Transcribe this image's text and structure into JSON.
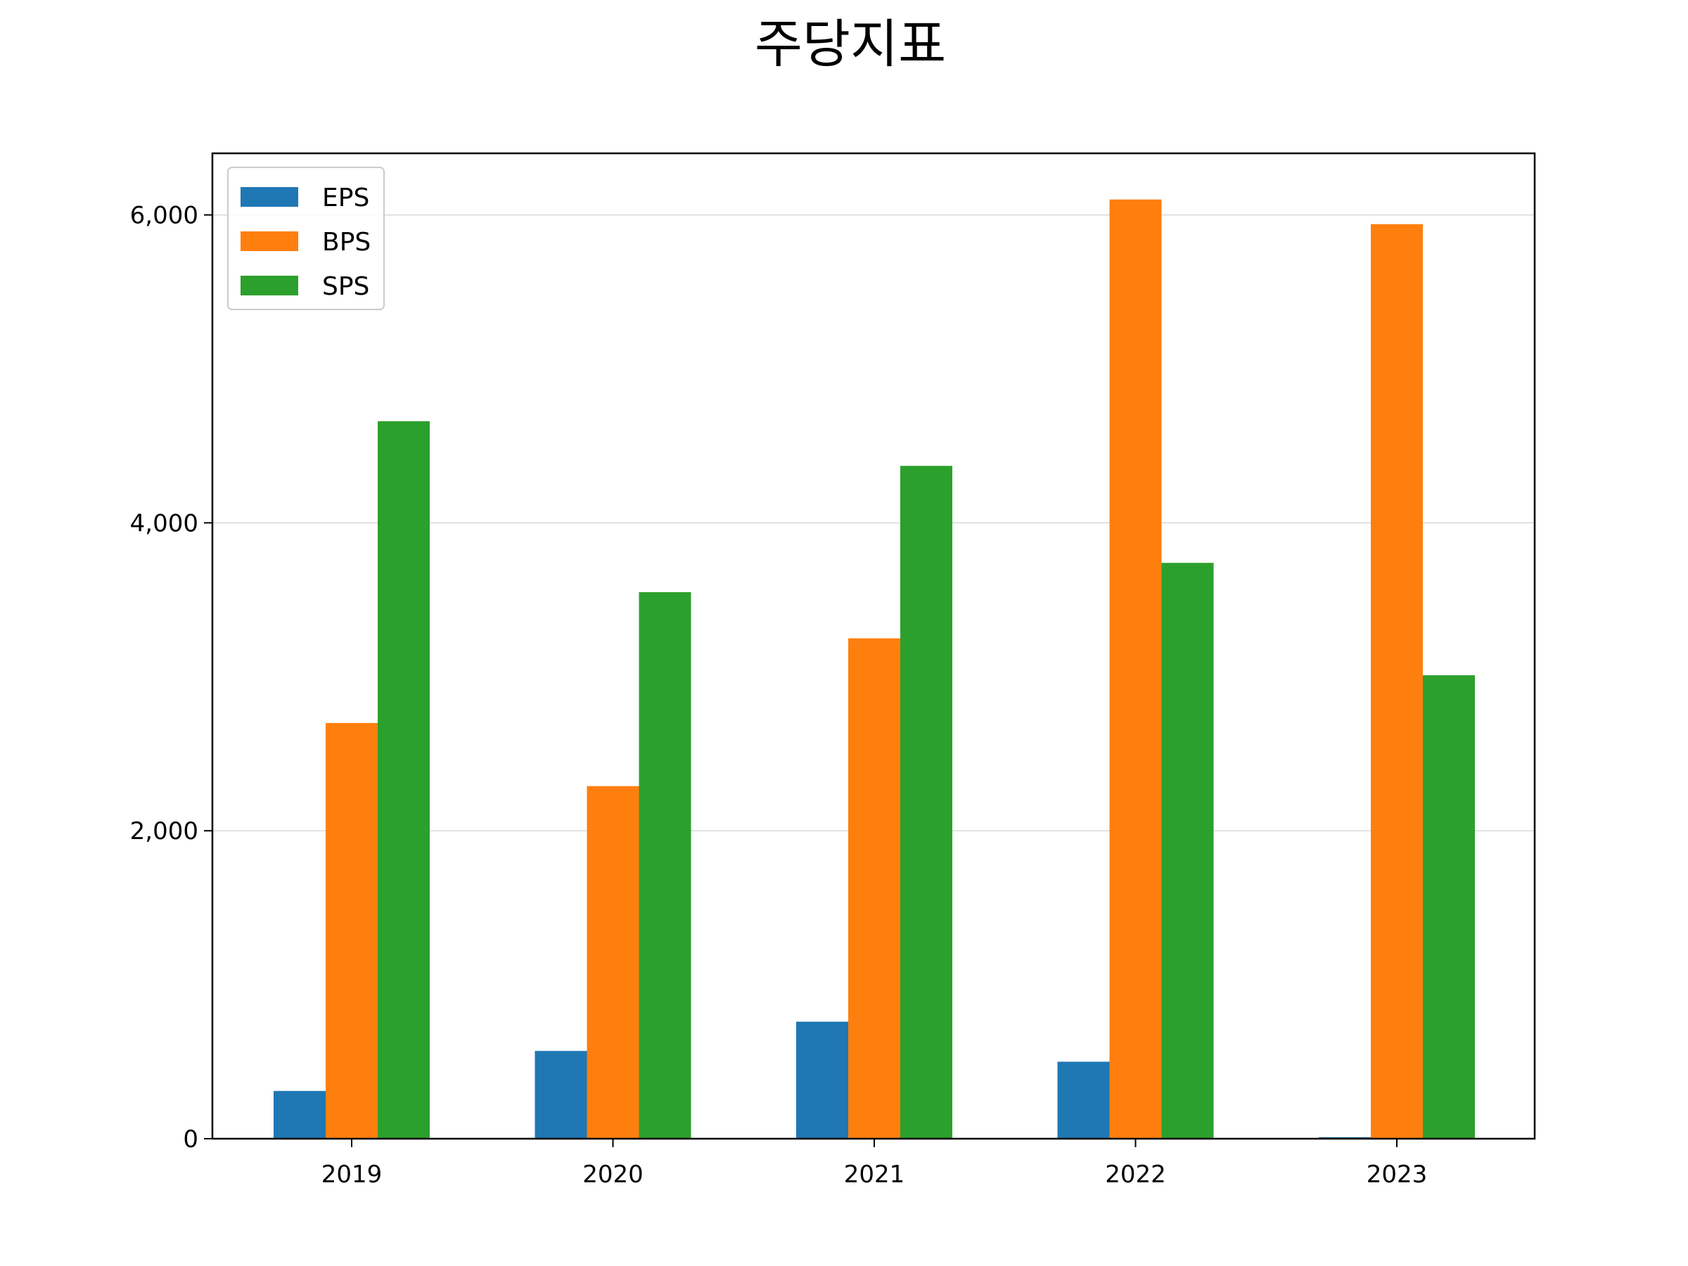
{
  "chart_data": {
    "type": "bar",
    "title": "주당지표",
    "xlabel": "",
    "ylabel": "",
    "categories": [
      "2019",
      "2020",
      "2021",
      "2022",
      "2023"
    ],
    "series": [
      {
        "name": "EPS",
        "color": "#1f77b4",
        "values": [
          310,
          570,
          760,
          500,
          10
        ]
      },
      {
        "name": "BPS",
        "color": "#ff7f0e",
        "values": [
          2700,
          2290,
          3250,
          6100,
          5940
        ]
      },
      {
        "name": "SPS",
        "color": "#2ca02c",
        "values": [
          4660,
          3550,
          4370,
          3740,
          3010
        ]
      }
    ],
    "yticks": [
      0,
      2000,
      4000,
      6000
    ],
    "ytick_labels": [
      "0",
      "2,000",
      "4,000",
      "6,000"
    ],
    "ylim": [
      0,
      6400
    ],
    "grid": "y",
    "legend_position": "top-left"
  }
}
